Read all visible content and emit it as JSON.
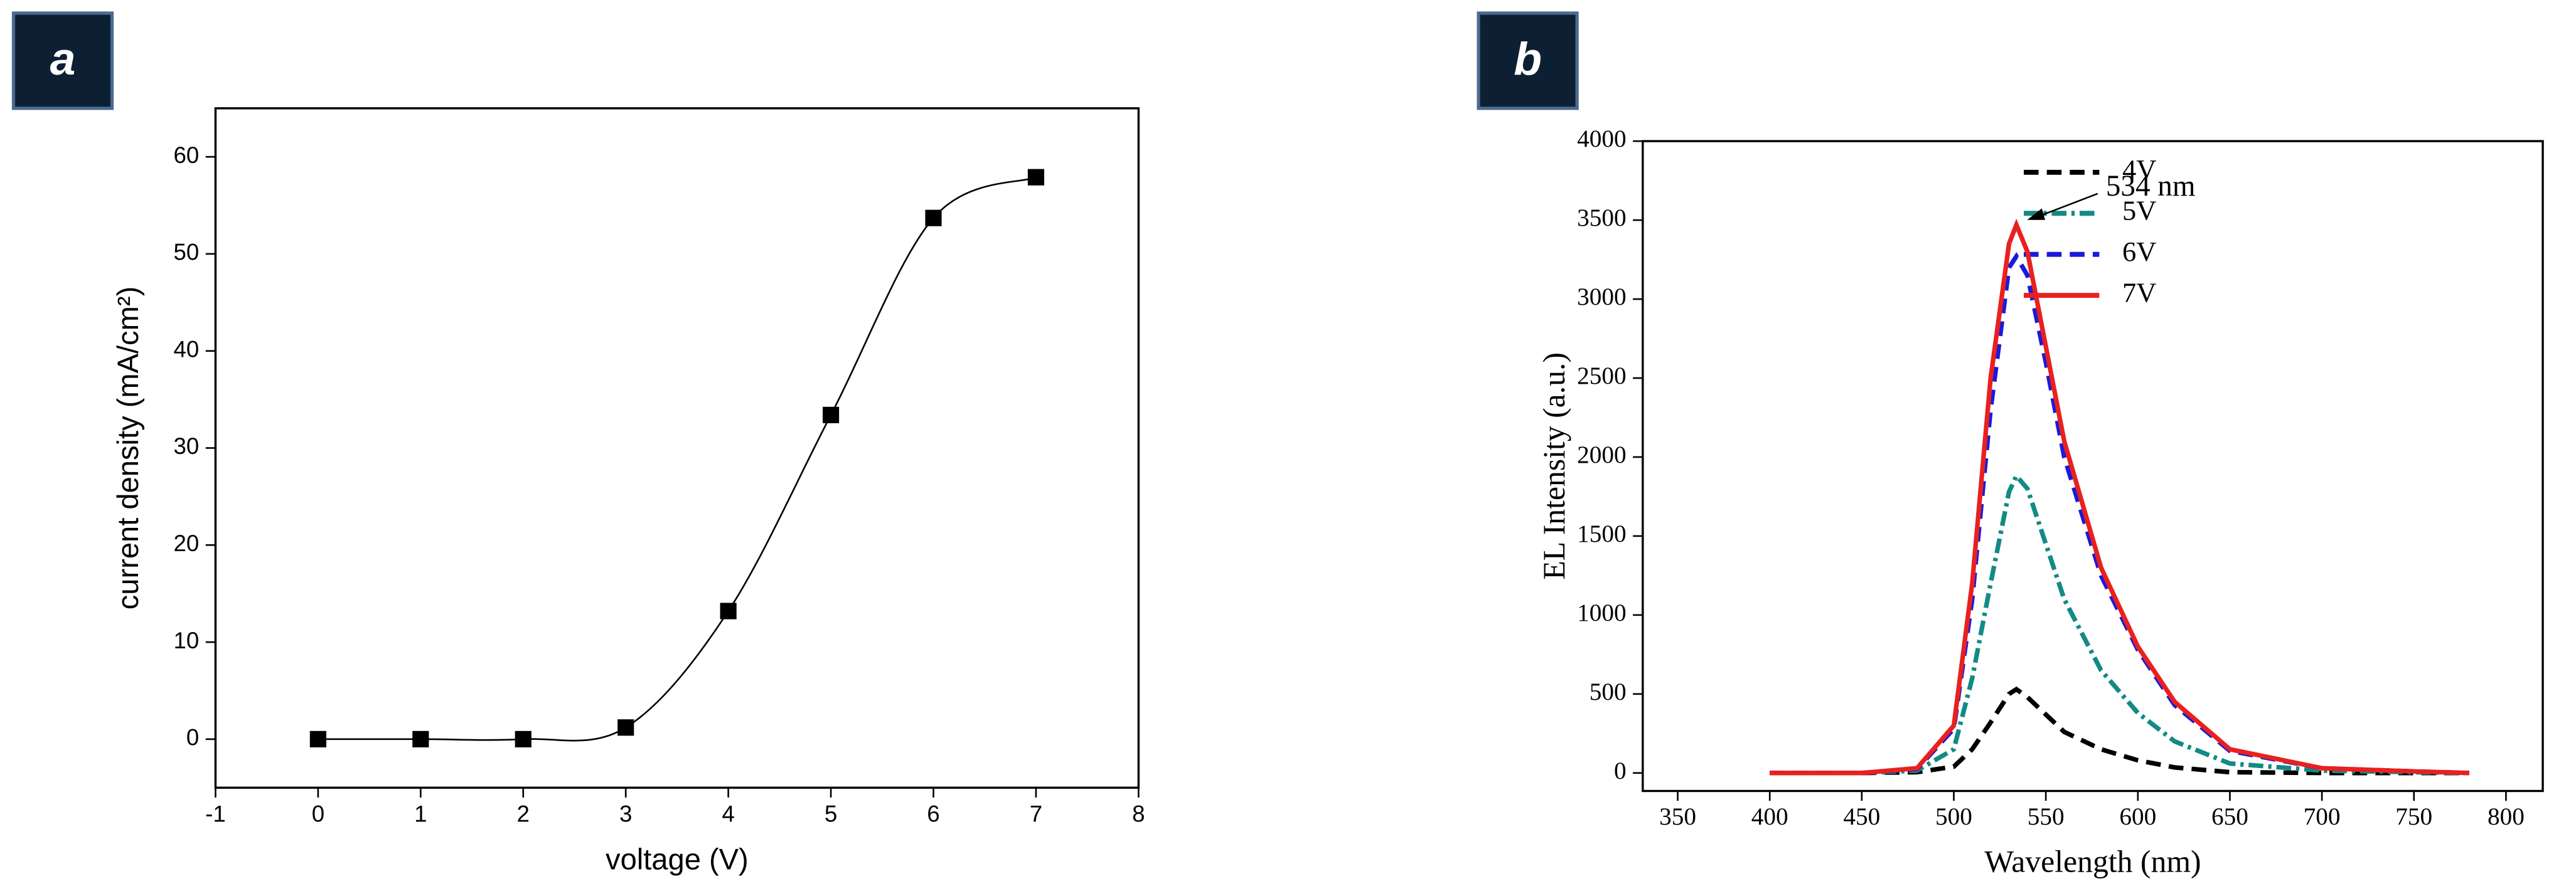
{
  "chart_data": [
    {
      "type": "scatter",
      "label": "a",
      "line": "smooth",
      "xlabel": "voltage (V)",
      "ylabel": "current density (mA/cm²)",
      "x": [
        0,
        1,
        2,
        3,
        4,
        5,
        6,
        7
      ],
      "series": [
        {
          "color": "#000000",
          "values": [
            0,
            0,
            0,
            1.2,
            13.2,
            33.4,
            53.7,
            57.9
          ]
        }
      ],
      "xlim": [
        -1,
        8
      ],
      "xticks": [
        -1,
        0,
        1,
        2,
        3,
        4,
        5,
        6,
        7,
        8
      ],
      "ylim": [
        -5,
        65
      ],
      "yticks": [
        0,
        10,
        20,
        30,
        40,
        50,
        60
      ]
    },
    {
      "type": "line",
      "label": "b",
      "xlabel": "Wavelength (nm)",
      "ylabel": "EL Intensity (a.u.)",
      "annotation": "534 nm",
      "x": [
        400,
        450,
        480,
        500,
        510,
        520,
        530,
        534,
        540,
        550,
        560,
        580,
        600,
        620,
        650,
        700,
        750,
        780
      ],
      "series": [
        {
          "name": "4V",
          "color": "#000000",
          "style": "dashed",
          "values": [
            0,
            0,
            5,
            40,
            150,
            320,
            500,
            530,
            480,
            370,
            260,
            150,
            80,
            35,
            5,
            0,
            0,
            0
          ]
        },
        {
          "name": "5V",
          "color": "#138a84",
          "style": "dashdot",
          "values": [
            0,
            0,
            15,
            150,
            600,
            1200,
            1780,
            1880,
            1800,
            1450,
            1100,
            650,
            380,
            200,
            60,
            15,
            5,
            0
          ]
        },
        {
          "name": "6V",
          "color": "#1a1adc",
          "style": "dashed",
          "values": [
            0,
            0,
            25,
            280,
            1100,
            2300,
            3200,
            3270,
            3150,
            2600,
            2000,
            1250,
            780,
            430,
            140,
            30,
            10,
            0
          ]
        },
        {
          "name": "7V",
          "color": "#e8211f",
          "style": "solid",
          "values": [
            0,
            0,
            30,
            300,
            1200,
            2500,
            3350,
            3470,
            3300,
            2700,
            2100,
            1300,
            800,
            450,
            150,
            30,
            10,
            0
          ]
        }
      ],
      "xlim": [
        331,
        820
      ],
      "xticks": [
        350,
        400,
        450,
        500,
        550,
        600,
        650,
        700,
        750,
        800
      ],
      "ylim": [
        -114,
        4000
      ],
      "yticks": [
        0,
        500,
        1000,
        1500,
        2000,
        2500,
        3000,
        3500,
        4000
      ]
    }
  ]
}
